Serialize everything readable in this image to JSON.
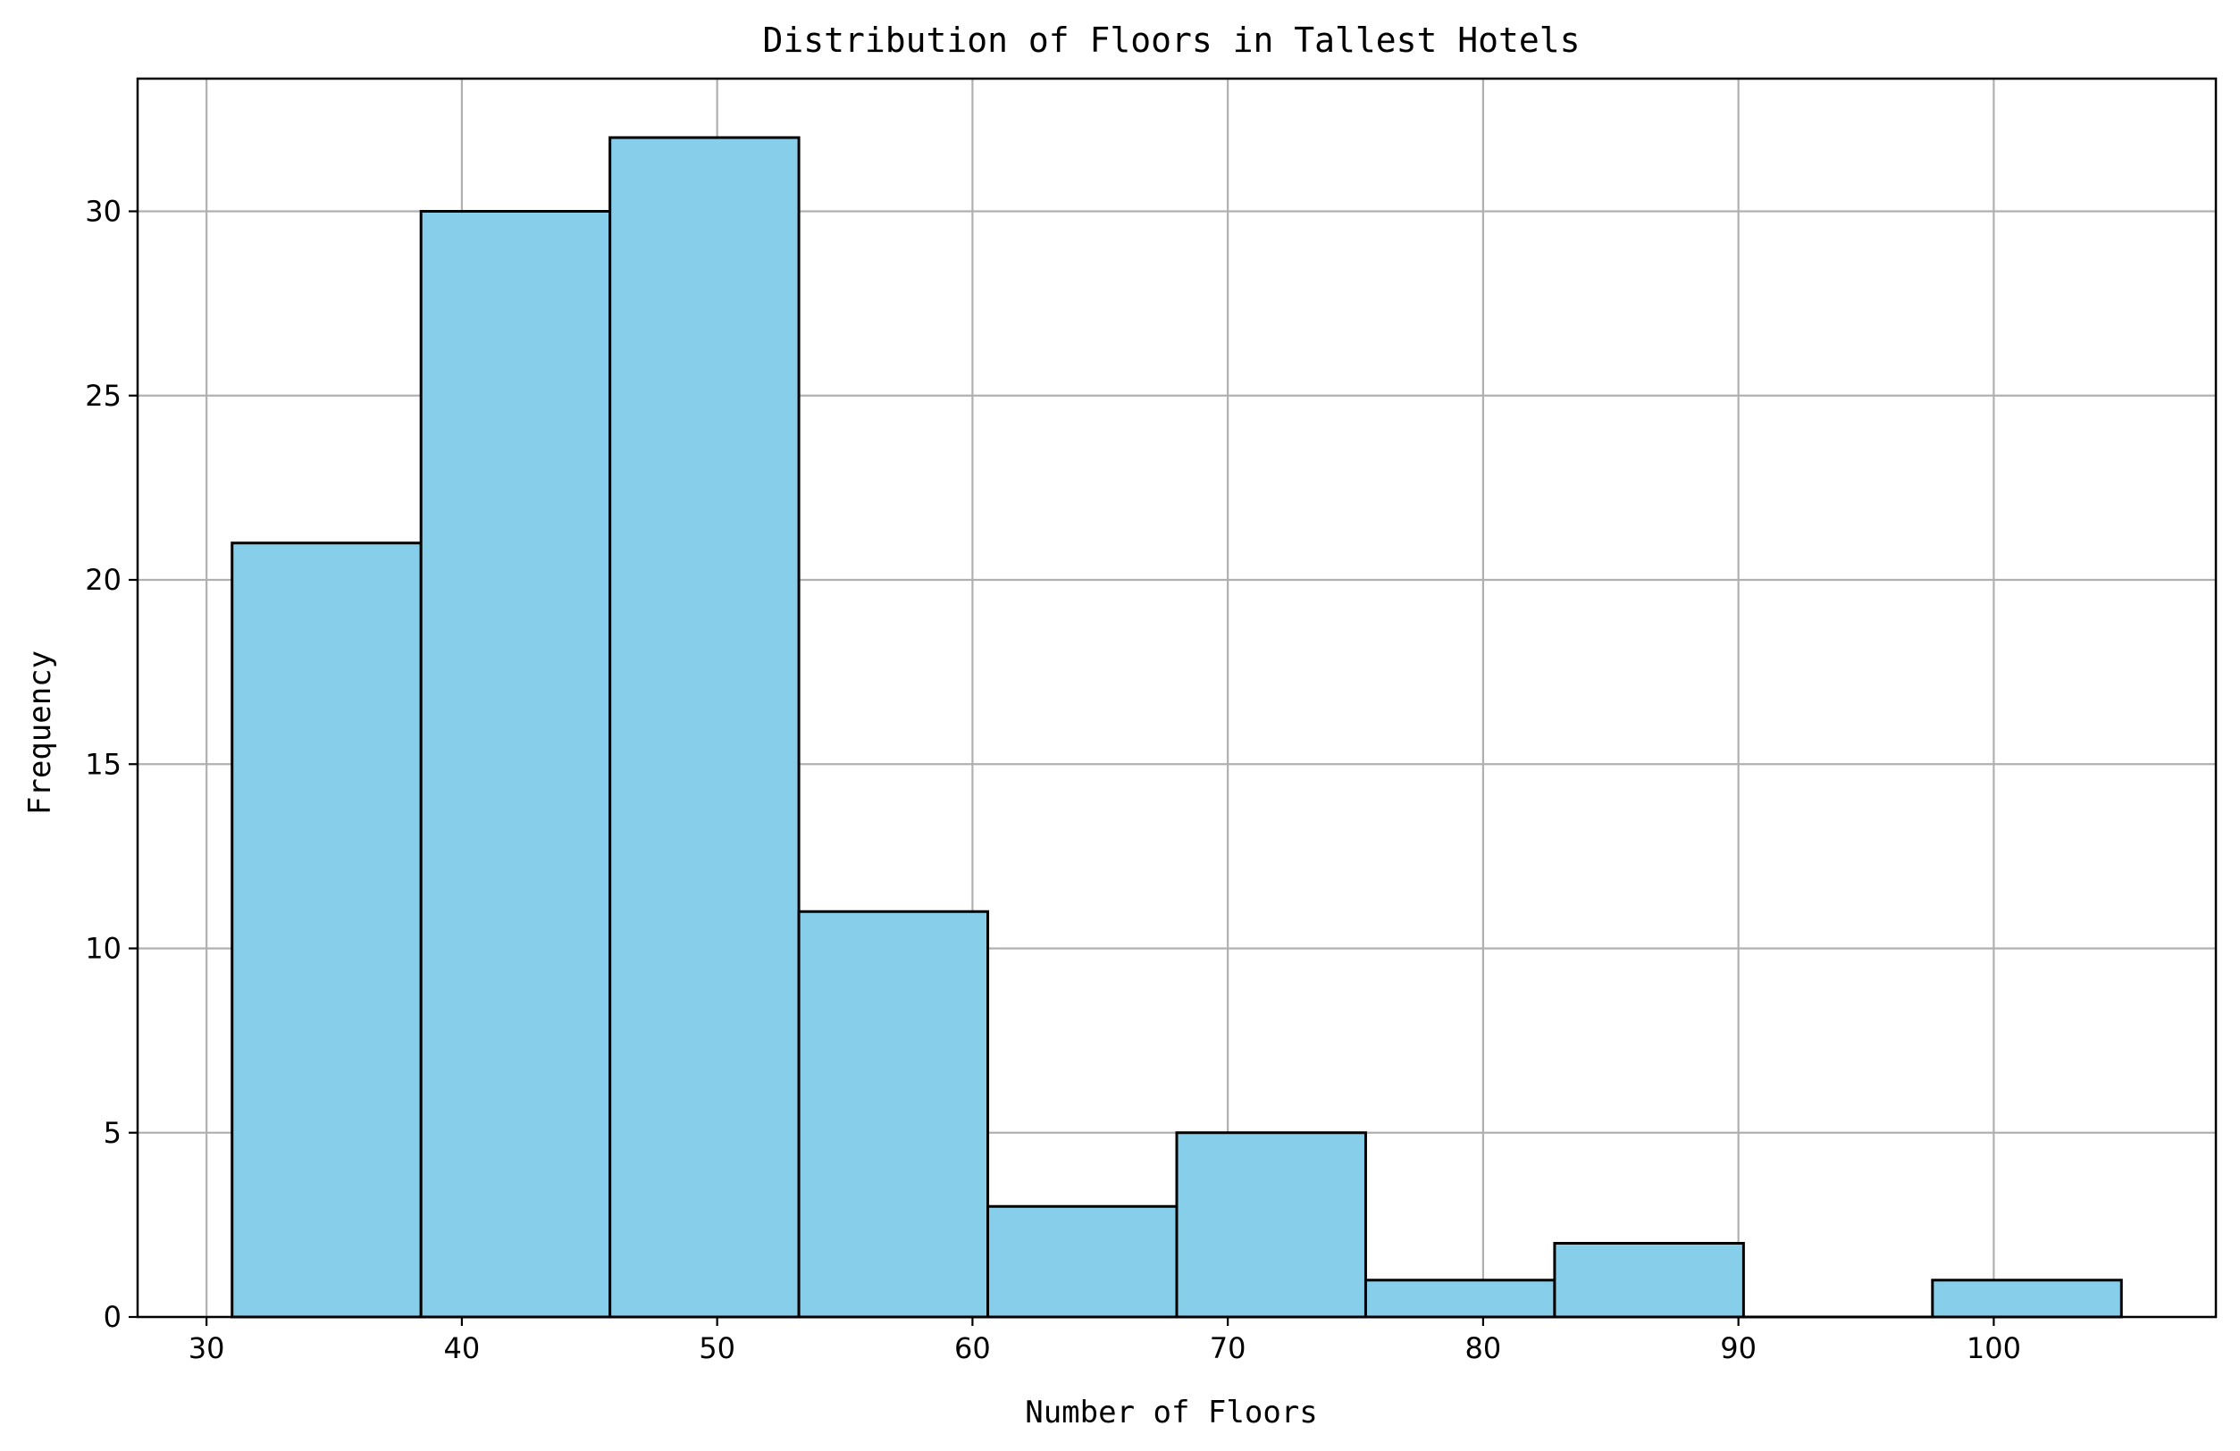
{
  "chart_data": {
    "type": "histogram",
    "title": "Distribution of Floors in Tallest Hotels",
    "xlabel": "Number of Floors",
    "ylabel": "Frequency",
    "xlim": [
      27.3,
      108.7
    ],
    "ylim": [
      0,
      33.6
    ],
    "xticks": [
      30,
      40,
      50,
      60,
      70,
      80,
      90,
      100
    ],
    "yticks": [
      0,
      5,
      10,
      15,
      20,
      25,
      30
    ],
    "bin_edges": [
      31.0,
      38.4,
      45.8,
      53.2,
      60.6,
      68.0,
      75.4,
      82.8,
      90.2,
      97.6,
      105.0
    ],
    "counts": [
      21,
      30,
      32,
      11,
      3,
      5,
      1,
      2,
      0,
      1
    ],
    "grid": true,
    "colors": {
      "bar_fill": "#87CEEB",
      "bar_edge": "#000000",
      "grid": "#b0b0b0"
    }
  }
}
